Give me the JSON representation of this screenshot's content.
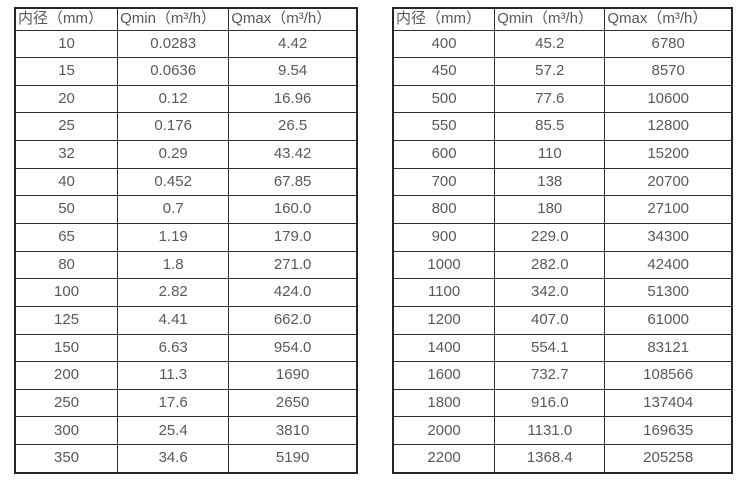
{
  "colors": {
    "background": "#ffffff",
    "text": "#595959",
    "border": "#303030",
    "outer_border": "#262626"
  },
  "chart_data": [
    {
      "type": "table",
      "position": "left",
      "columns": [
        "内径（mm）",
        "Qmin（m³/h）",
        "Qmax（m³/h）"
      ],
      "rows": [
        [
          "10",
          "0.0283",
          "4.42"
        ],
        [
          "15",
          "0.0636",
          "9.54"
        ],
        [
          "20",
          "0.12",
          "16.96"
        ],
        [
          "25",
          "0.176",
          "26.5"
        ],
        [
          "32",
          "0.29",
          "43.42"
        ],
        [
          "40",
          "0.452",
          "67.85"
        ],
        [
          "50",
          "0.7",
          "160.0"
        ],
        [
          "65",
          "1.19",
          "179.0"
        ],
        [
          "80",
          "1.8",
          "271.0"
        ],
        [
          "100",
          "2.82",
          "424.0"
        ],
        [
          "125",
          "4.41",
          "662.0"
        ],
        [
          "150",
          "6.63",
          "954.0"
        ],
        [
          "200",
          "11.3",
          "1690"
        ],
        [
          "250",
          "17.6",
          "2650"
        ],
        [
          "300",
          "25.4",
          "3810"
        ],
        [
          "350",
          "34.6",
          "5190"
        ]
      ]
    },
    {
      "type": "table",
      "position": "right",
      "columns": [
        "内径（mm）",
        "Qmin（m³/h）",
        "Qmax（m³/h）"
      ],
      "rows": [
        [
          "400",
          "45.2",
          "6780"
        ],
        [
          "450",
          "57.2",
          "8570"
        ],
        [
          "500",
          "77.6",
          "10600"
        ],
        [
          "550",
          "85.5",
          "12800"
        ],
        [
          "600",
          "110",
          "15200"
        ],
        [
          "700",
          "138",
          "20700"
        ],
        [
          "800",
          "180",
          "27100"
        ],
        [
          "900",
          "229.0",
          "34300"
        ],
        [
          "1000",
          "282.0",
          "42400"
        ],
        [
          "1100",
          "342.0",
          "51300"
        ],
        [
          "1200",
          "407.0",
          "61000"
        ],
        [
          "1400",
          "554.1",
          "83121"
        ],
        [
          "1600",
          "732.7",
          "108566"
        ],
        [
          "1800",
          "916.0",
          "137404"
        ],
        [
          "2000",
          "1131.0",
          "169635"
        ],
        [
          "2200",
          "1368.4",
          "205258"
        ]
      ]
    }
  ]
}
